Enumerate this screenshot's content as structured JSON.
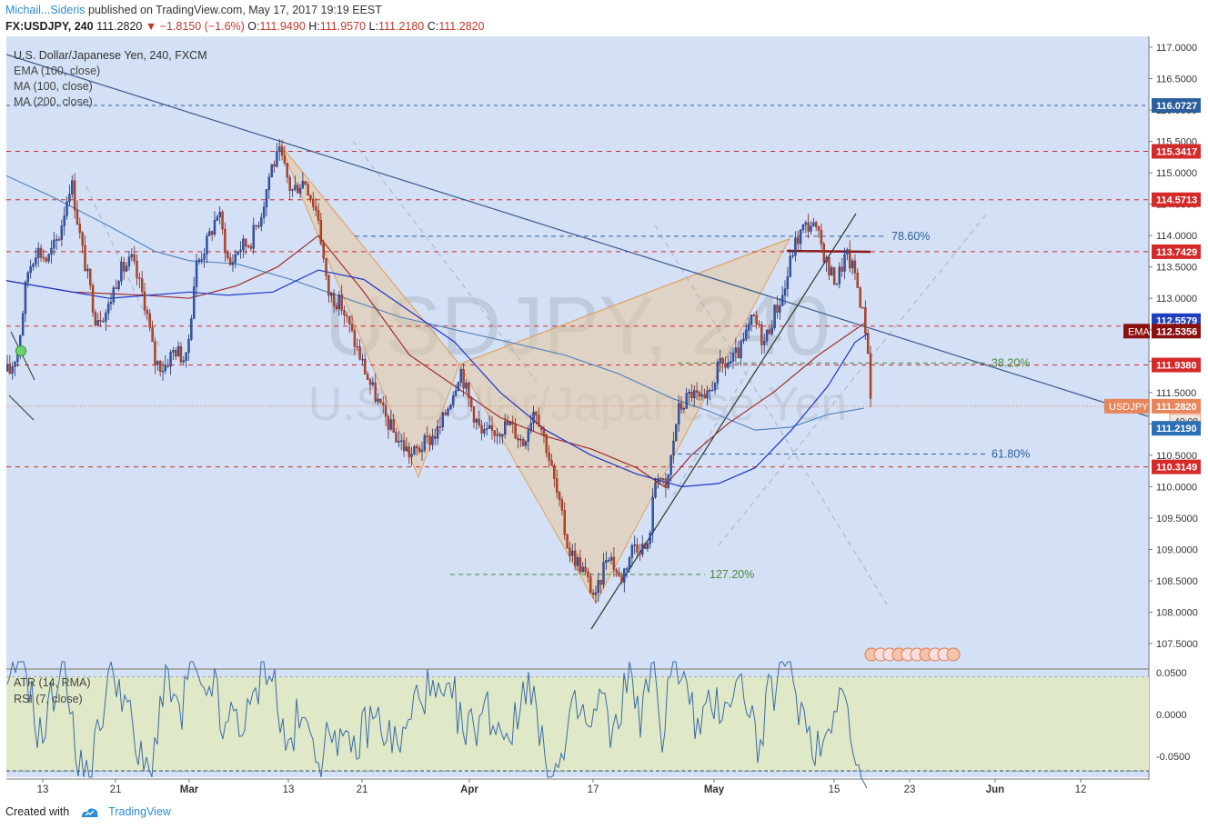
{
  "header": {
    "author": "Michail...Sideris",
    "published_text": "published on TradingView.com, May 17, 2017 19:19 EEST",
    "symbol": "FX:USDJPY, 240",
    "last": "111.2820",
    "change": "▼ −1.8150 (−1.6%)",
    "open_label": "O:",
    "open": "111.9490",
    "high_label": "H:",
    "high": "111.9570",
    "low_label": "L:",
    "low": "111.2180",
    "close_label": "C:",
    "close": "111.2820"
  },
  "legend": {
    "title": "U.S. Dollar/Japanese Yen, 240, FXCM",
    "items": [
      "EMA (100, close)",
      "MA (100, close)",
      "MA (200, close)"
    ]
  },
  "watermark": {
    "line1": "USDJPY, 240",
    "line2": "U.S. Dollar/Japanese Yen"
  },
  "chart_data": {
    "type": "line",
    "title": "U.S. Dollar/Japanese Yen, 240, FXCM",
    "ylim": [
      107.2,
      117.2
    ],
    "y_ticks": [
      107.5,
      108.0,
      108.5,
      109.0,
      109.5,
      110.0,
      110.5,
      111.0,
      111.5,
      112.0,
      112.5,
      113.0,
      113.5,
      114.0,
      114.5,
      115.0,
      115.5,
      116.0,
      116.5,
      117.0
    ],
    "x_ticks": [
      "13",
      "21",
      "Mar",
      "13",
      "21",
      "Apr",
      "17",
      "May",
      "15",
      "23",
      "Jun",
      "12"
    ],
    "price_path": [
      [
        0,
        112.0
      ],
      [
        10,
        111.8
      ],
      [
        20,
        112.2
      ],
      [
        30,
        113.4
      ],
      [
        40,
        113.8
      ],
      [
        52,
        113.6
      ],
      [
        65,
        114.0
      ],
      [
        78,
        114.9
      ],
      [
        90,
        113.8
      ],
      [
        105,
        112.7
      ],
      [
        118,
        112.8
      ],
      [
        130,
        113.4
      ],
      [
        145,
        113.6
      ],
      [
        160,
        112.9
      ],
      [
        170,
        112.0
      ],
      [
        180,
        111.9
      ],
      [
        192,
        112.2
      ],
      [
        205,
        112.0
      ],
      [
        215,
        113.5
      ],
      [
        228,
        113.9
      ],
      [
        240,
        114.4
      ],
      [
        252,
        113.5
      ],
      [
        262,
        113.8
      ],
      [
        275,
        113.9
      ],
      [
        288,
        114.4
      ],
      [
        298,
        115.1
      ],
      [
        308,
        115.3
      ],
      [
        320,
        114.7
      ],
      [
        335,
        114.9
      ],
      [
        350,
        114.3
      ],
      [
        360,
        113.1
      ],
      [
        375,
        112.9
      ],
      [
        390,
        112.3
      ],
      [
        405,
        111.7
      ],
      [
        420,
        111.2
      ],
      [
        435,
        110.8
      ],
      [
        452,
        110.5
      ],
      [
        468,
        110.7
      ],
      [
        483,
        110.9
      ],
      [
        500,
        111.6
      ],
      [
        506,
        111.9
      ],
      [
        515,
        111.4
      ],
      [
        530,
        110.8
      ],
      [
        545,
        110.9
      ],
      [
        560,
        111.0
      ],
      [
        575,
        110.7
      ],
      [
        588,
        111.3
      ],
      [
        600,
        110.7
      ],
      [
        612,
        109.9
      ],
      [
        625,
        109.0
      ],
      [
        640,
        108.7
      ],
      [
        655,
        108.2
      ],
      [
        668,
        109.0
      ],
      [
        682,
        108.5
      ],
      [
        697,
        109.1
      ],
      [
        712,
        109.0
      ],
      [
        722,
        110.3
      ],
      [
        732,
        109.9
      ],
      [
        745,
        111.2
      ],
      [
        760,
        111.5
      ],
      [
        775,
        111.3
      ],
      [
        790,
        111.9
      ],
      [
        805,
        112.0
      ],
      [
        815,
        112.2
      ],
      [
        828,
        112.7
      ],
      [
        840,
        112.3
      ],
      [
        852,
        112.8
      ],
      [
        862,
        113.1
      ],
      [
        872,
        113.8
      ],
      [
        882,
        114.1
      ],
      [
        892,
        114.2
      ],
      [
        902,
        113.9
      ],
      [
        912,
        113.4
      ],
      [
        920,
        113.3
      ],
      [
        930,
        113.7
      ],
      [
        940,
        113.4
      ],
      [
        948,
        112.8
      ],
      [
        953,
        112.4
      ],
      [
        958,
        111.3
      ]
    ],
    "ema100_path": [
      [
        0,
        113.3
      ],
      [
        80,
        113.1
      ],
      [
        160,
        113.05
      ],
      [
        208,
        113.0
      ],
      [
        260,
        113.2
      ],
      [
        305,
        113.5
      ],
      [
        350,
        114.0
      ],
      [
        400,
        113.1
      ],
      [
        450,
        112.1
      ],
      [
        500,
        111.6
      ],
      [
        550,
        111.1
      ],
      [
        600,
        110.8
      ],
      [
        650,
        110.6
      ],
      [
        700,
        110.3
      ],
      [
        730,
        110.0
      ],
      [
        760,
        110.5
      ],
      [
        800,
        111.0
      ],
      [
        850,
        111.5
      ],
      [
        900,
        112.1
      ],
      [
        930,
        112.4
      ],
      [
        950,
        112.6
      ]
    ],
    "ma100_path": [
      [
        0,
        113.3
      ],
      [
        60,
        113.15
      ],
      [
        120,
        113.0
      ],
      [
        208,
        113.1
      ],
      [
        250,
        113.05
      ],
      [
        300,
        113.1
      ],
      [
        350,
        113.45
      ],
      [
        400,
        113.3
      ],
      [
        450,
        112.8
      ],
      [
        500,
        112.3
      ],
      [
        550,
        111.5
      ],
      [
        600,
        110.9
      ],
      [
        650,
        110.5
      ],
      [
        700,
        110.2
      ],
      [
        750,
        110.0
      ],
      [
        790,
        110.05
      ],
      [
        830,
        110.3
      ],
      [
        870,
        110.9
      ],
      [
        910,
        111.6
      ],
      [
        940,
        112.3
      ],
      [
        955,
        112.45
      ]
    ],
    "ma200_path": [
      [
        0,
        115.0
      ],
      [
        60,
        114.6
      ],
      [
        120,
        114.15
      ],
      [
        170,
        113.75
      ],
      [
        208,
        113.6
      ],
      [
        260,
        113.55
      ],
      [
        320,
        113.3
      ],
      [
        380,
        113.0
      ],
      [
        440,
        112.7
      ],
      [
        500,
        112.5
      ],
      [
        560,
        112.3
      ],
      [
        620,
        112.1
      ],
      [
        680,
        111.8
      ],
      [
        740,
        111.4
      ],
      [
        780,
        111.2
      ],
      [
        830,
        110.9
      ],
      [
        870,
        110.95
      ],
      [
        910,
        111.15
      ],
      [
        950,
        111.25
      ]
    ],
    "horizontal_levels": [
      {
        "value": 116.0727,
        "label": "116.0727",
        "color": "#2c5f9e",
        "dash": "4,4"
      },
      {
        "value": 115.3417,
        "label": "115.3417",
        "color": "#d42a2a",
        "dash": "5,5"
      },
      {
        "value": 114.5713,
        "label": "114.5713",
        "color": "#d42a2a",
        "dash": "5,5"
      },
      {
        "value": 113.7429,
        "label": "113.7429",
        "color": "#d42a2a",
        "dash": "5,5"
      },
      {
        "value": 112.558,
        "label": "112.5580",
        "color": "#d42a2a",
        "dash": "5,5"
      },
      {
        "value": 111.938,
        "label": "111.9380",
        "color": "#d42a2a",
        "dash": "5,5"
      },
      {
        "value": 110.3149,
        "label": "110.3149",
        "color": "#d42a2a",
        "dash": "5,5"
      }
    ],
    "price_labels": [
      {
        "value": 112.5579,
        "label": "112.5579",
        "color": "#1f3fbf"
      },
      {
        "value": 112.5356,
        "label": "112.5356",
        "color": "#8b1010",
        "tag": "EMA"
      },
      {
        "value": 111.282,
        "label": "111.2820",
        "color": "#e8855a",
        "tag": "USDJPY",
        "sub": "40:08"
      },
      {
        "value": 111.219,
        "label": "111.2190",
        "color": "#2d6fb5"
      }
    ],
    "fib_levels": [
      {
        "label": "78.60%",
        "value": 113.99,
        "x1": 390,
        "x2": 975,
        "color": "#2c5f9e"
      },
      {
        "label": "38.20%",
        "value": 111.97,
        "x1": 745,
        "x2": 1085,
        "color": "#4c8a3c"
      },
      {
        "label": "61.80%",
        "value": 110.52,
        "x1": 745,
        "x2": 1085,
        "color": "#2c5f9e"
      },
      {
        "label": "127.20%",
        "value": 108.6,
        "x1": 495,
        "x2": 775,
        "color": "#4c8a3c"
      }
    ],
    "pattern_points": [
      [
        308,
        115.45
      ],
      [
        460,
        110.15
      ],
      [
        505,
        111.95
      ],
      [
        655,
        108.15
      ],
      [
        868,
        113.95
      ]
    ],
    "indicators": {
      "title_atr": "ATR (14, RMA)",
      "title_rsi": "RSI (7, close)",
      "y_ticks": [
        0.05,
        0.0,
        -0.05
      ],
      "y_tick_labels": [
        "0.0500",
        "0.0000",
        "-0.0500"
      ],
      "band": [
        -0.068,
        0.045
      ]
    }
  },
  "footer": {
    "created_with": "Created with",
    "brand": "TradingView"
  }
}
